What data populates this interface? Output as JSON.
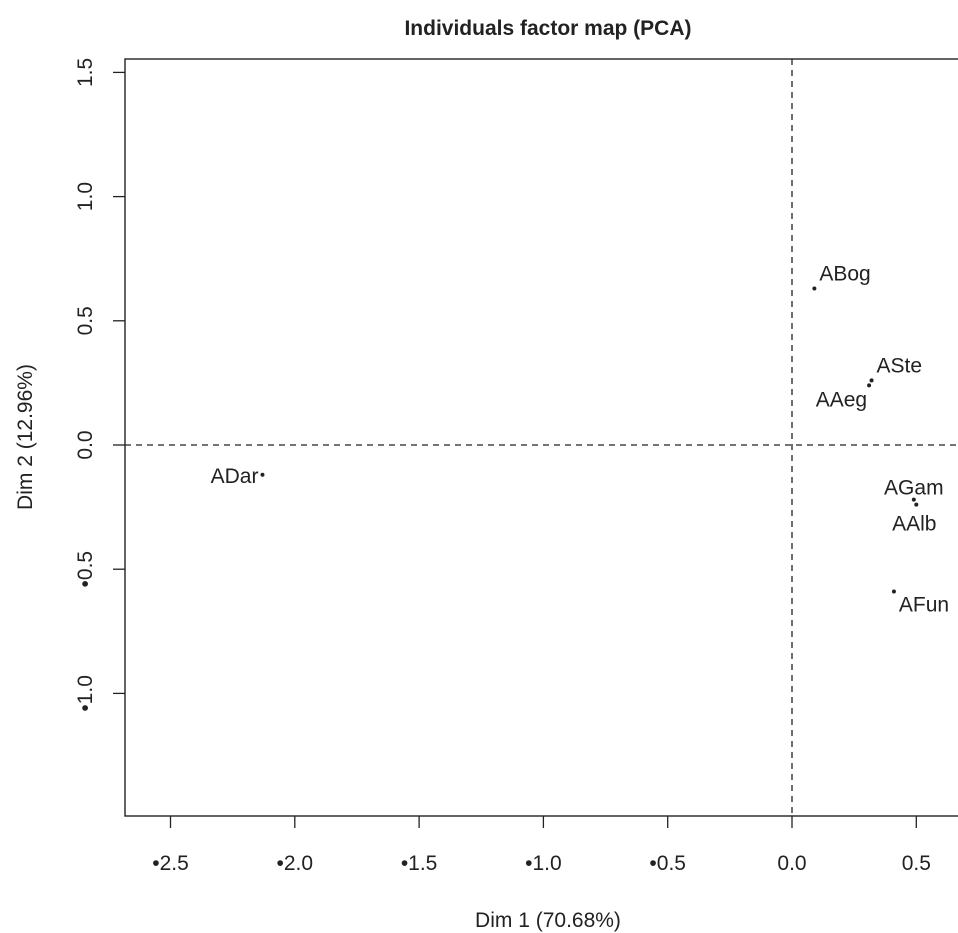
{
  "chart_data": {
    "type": "scatter",
    "title": "Individuals factor map (PCA)",
    "xlabel": "Dim 1 (70.68%)",
    "ylabel": "Dim 2 (12.96%)",
    "xlim": [
      -2.6,
      0.65
    ],
    "ylim": [
      -1.49,
      1.55
    ],
    "x_ticks": [
      {
        "value": -2.5,
        "label": "•2.5"
      },
      {
        "value": -2.0,
        "label": "•2.0"
      },
      {
        "value": -1.5,
        "label": "•1.5"
      },
      {
        "value": -1.0,
        "label": "•1.0"
      },
      {
        "value": -0.5,
        "label": "•0.5"
      },
      {
        "value": 0.0,
        "label": "0.0"
      },
      {
        "value": 0.5,
        "label": "0.5"
      }
    ],
    "y_ticks": [
      {
        "value": -1.0,
        "label": "•1.0"
      },
      {
        "value": -0.5,
        "label": "•0.5"
      },
      {
        "value": 0.0,
        "label": "0.0"
      },
      {
        "value": 0.5,
        "label": "0.5"
      },
      {
        "value": 1.0,
        "label": "1.0"
      },
      {
        "value": 1.5,
        "label": "1.5"
      }
    ],
    "reference_lines": {
      "x": 0,
      "y": 0,
      "style": "dashed"
    },
    "points": [
      {
        "label": "ABog",
        "x": 0.09,
        "y": 0.63,
        "label_side": "right"
      },
      {
        "label": "ASte",
        "x": 0.32,
        "y": 0.26,
        "label_side": "right"
      },
      {
        "label": "AAeg",
        "x": 0.31,
        "y": 0.24,
        "label_side": "left-below"
      },
      {
        "label": "ADar",
        "x": -2.13,
        "y": -0.12,
        "label_side": "left"
      },
      {
        "label": "AGam",
        "x": 0.49,
        "y": -0.22,
        "label_side": "above"
      },
      {
        "label": "AAlb",
        "x": 0.5,
        "y": -0.24,
        "label_side": "below"
      },
      {
        "label": "AFun",
        "x": 0.41,
        "y": -0.59,
        "label_side": "right-below"
      }
    ],
    "grid": false,
    "legend": "none"
  }
}
